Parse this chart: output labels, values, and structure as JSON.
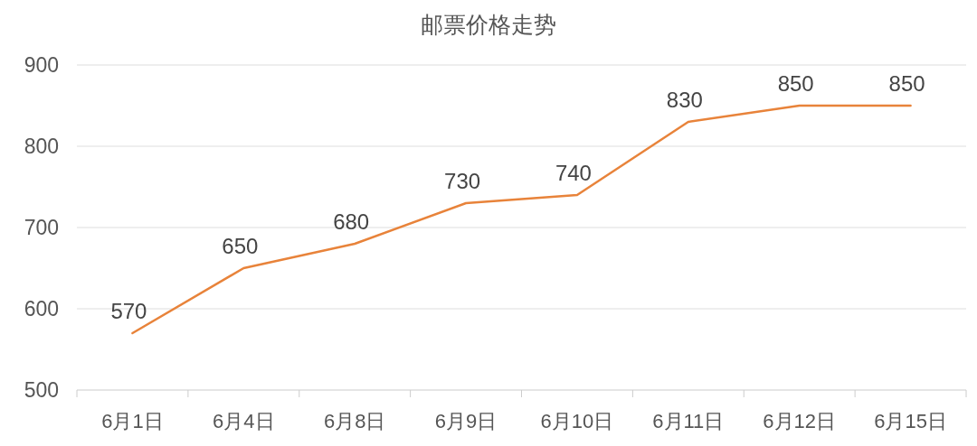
{
  "chart_data": {
    "type": "line",
    "title": "邮票价格走势",
    "categories": [
      "6月1日",
      "6月4日",
      "6月8日",
      "6月9日",
      "6月10日",
      "6月11日",
      "6月12日",
      "6月15日"
    ],
    "series": [
      {
        "color": "#e8833a",
        "values": [
          570,
          650,
          680,
          730,
          740,
          830,
          850,
          850
        ]
      }
    ],
    "ylim": [
      500,
      900
    ],
    "yticks": [
      500,
      600,
      700,
      800,
      900
    ],
    "grid": "y",
    "data_labels": true,
    "marker": "none",
    "line_style": "solid"
  }
}
